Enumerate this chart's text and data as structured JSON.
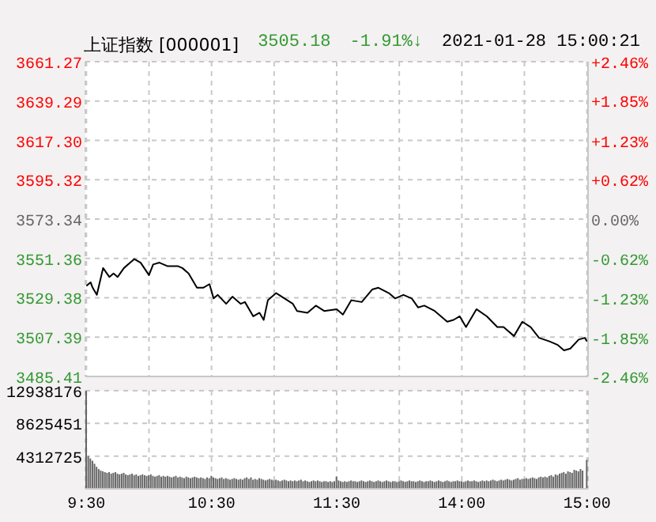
{
  "chart_data": [
    {
      "type": "line",
      "title": "上证指数 [000001]",
      "annotations": [
        "3505.18",
        "-1.91%↓",
        "2021-01-28 15:00:21"
      ],
      "grid": true,
      "tick_labels": "y",
      "marker": "none",
      "ylim": [
        3485.41,
        3661.27
      ],
      "yticks": [
        3485.41,
        3507.39,
        3529.38,
        3551.36,
        3573.34,
        3595.32,
        {
          "value": 3617.3,
          "label": "3617.30"
        },
        3639.29,
        3661.27
      ],
      "y2lim": [
        -2.46,
        2.46
      ],
      "y2ticks": [
        {
          "value": -2.46,
          "label": "-2.46%"
        },
        {
          "value": -1.85,
          "label": "-1.85%"
        },
        {
          "value": -1.23,
          "label": "-1.23%"
        },
        {
          "value": -0.62,
          "label": "-0.62%"
        },
        {
          "value": 0,
          "label": "0.00%"
        },
        {
          "value": 0.62,
          "label": "+0.62%"
        },
        {
          "value": 1.23,
          "label": "+1.23%"
        },
        {
          "value": 1.85,
          "label": "+1.85%"
        },
        {
          "value": 2.46,
          "label": "+2.46%"
        }
      ],
      "series": [
        {
          "color": "#000000",
          "values": [
            3536,
            null,
            3538,
            3535,
            null,
            3531,
            null,
            3541,
            3546,
            null,
            null,
            3541,
            null,
            3543,
            null,
            3541,
            null,
            null,
            3546,
            null,
            null,
            3549,
            null,
            3551,
            null,
            null,
            3549,
            null,
            null,
            null,
            3542,
            null,
            3548,
            null,
            null,
            3549,
            null,
            null,
            null,
            3547,
            null,
            null,
            null,
            null,
            3547,
            null,
            3546,
            null,
            null,
            3543,
            null,
            null,
            null,
            3535,
            null,
            null,
            3535,
            null,
            null,
            3537,
            null,
            3529,
            null,
            3531,
            null,
            null,
            null,
            3526,
            null,
            null,
            3530,
            null,
            null,
            null,
            3526,
            null,
            3527,
            null,
            null,
            null,
            3519,
            null,
            null,
            3521,
            null,
            3517,
            null,
            3528,
            null,
            null,
            null,
            3532,
            null,
            null,
            null,
            3529,
            null,
            null,
            null,
            3526,
            null,
            3522,
            null,
            null,
            null,
            null,
            3521,
            null,
            null,
            null,
            3525,
            null,
            null,
            null,
            3522,
            null,
            null,
            null,
            null,
            null,
            3523,
            null,
            null,
            3520,
            null,
            null,
            null,
            3528,
            null,
            null,
            null,
            null,
            3527,
            null,
            null,
            null,
            null,
            3534,
            null,
            null,
            3535,
            null,
            null,
            null,
            null,
            3532,
            null,
            null,
            3529,
            null,
            null,
            null,
            3531,
            null,
            null,
            null,
            3529,
            null,
            null,
            3524,
            null,
            null,
            3525,
            null,
            null,
            null,
            null,
            3522,
            null,
            null,
            null,
            null,
            null,
            3516,
            null,
            null,
            3517,
            null,
            null,
            3519,
            null,
            null,
            3513,
            null,
            null,
            null,
            null,
            3523,
            null,
            null,
            null,
            null,
            3519,
            null,
            null,
            null,
            null,
            3513,
            null,
            null,
            3513,
            null,
            null,
            null,
            null,
            3508,
            null,
            null,
            null,
            3516,
            null,
            null,
            null,
            3513,
            null,
            null,
            null,
            3507,
            null,
            null,
            null,
            null,
            3505,
            null,
            null,
            null,
            3503,
            null,
            null,
            3500,
            null,
            null,
            3501,
            null,
            null,
            null,
            3506,
            null,
            null,
            3507,
            3505
          ]
        }
      ]
    },
    {
      "type": "bar",
      "grid": true,
      "categories": [
        "9:30",
        null,
        null,
        null,
        null,
        null,
        null,
        null,
        null,
        null,
        null,
        null,
        null,
        null,
        null,
        null,
        null,
        null,
        null,
        null,
        null,
        null,
        null,
        null,
        null,
        null,
        null,
        null,
        null,
        null,
        null,
        null,
        null,
        null,
        null,
        null,
        null,
        null,
        null,
        null,
        null,
        null,
        null,
        null,
        null,
        null,
        null,
        null,
        null,
        null,
        null,
        null,
        null,
        null,
        null,
        null,
        null,
        null,
        null,
        null,
        "10:30",
        null,
        null,
        null,
        null,
        null,
        null,
        null,
        null,
        null,
        null,
        null,
        null,
        null,
        null,
        null,
        null,
        null,
        null,
        null,
        null,
        null,
        null,
        null,
        null,
        null,
        null,
        null,
        null,
        null,
        null,
        null,
        null,
        null,
        null,
        null,
        null,
        null,
        null,
        null,
        null,
        null,
        null,
        null,
        null,
        null,
        null,
        null,
        null,
        null,
        null,
        null,
        null,
        null,
        null,
        null,
        null,
        null,
        null,
        null,
        "11:30",
        null,
        null,
        null,
        null,
        null,
        null,
        null,
        null,
        null,
        null,
        null,
        null,
        null,
        null,
        null,
        null,
        null,
        null,
        null,
        null,
        null,
        null,
        null,
        null,
        null,
        null,
        null,
        null,
        null,
        null,
        null,
        null,
        null,
        null,
        null,
        null,
        null,
        null,
        null,
        null,
        null,
        null,
        null,
        null,
        null,
        null,
        null,
        null,
        null,
        null,
        null,
        null,
        null,
        null,
        null,
        null,
        null,
        null,
        null,
        "14:00",
        null,
        null,
        null,
        null,
        null,
        null,
        null,
        null,
        null,
        null,
        null,
        null,
        null,
        null,
        null,
        null,
        null,
        null,
        null,
        null,
        null,
        null,
        null,
        null,
        null,
        null,
        null,
        null,
        null,
        null,
        null,
        null,
        null,
        null,
        null,
        null,
        null,
        null,
        null,
        null,
        null,
        null,
        null,
        null,
        null,
        null,
        null,
        null,
        null,
        null,
        null,
        null,
        null,
        null,
        null,
        null,
        null,
        null,
        null,
        "15:00"
      ],
      "ylim": [
        0,
        12938176
      ],
      "yticks": [
        4312725,
        8625451,
        12938176
      ],
      "series": [
        {
          "color": "#666666",
          "values": [
            12900000,
            4300000,
            4000000,
            3700000,
            3300000,
            2900000,
            2600000,
            2400000,
            2300000,
            2200000,
            2100000,
            2200000,
            2000000,
            2100000,
            2200000,
            2000000,
            1900000,
            2000000,
            2100000,
            1900000,
            1800000,
            1900000,
            2000000,
            1800000,
            1900000,
            1700000,
            1800000,
            1900000,
            1800000,
            1700000,
            1800000,
            1900000,
            1700000,
            1600000,
            1700000,
            1800000,
            1600000,
            1700000,
            1600000,
            1700000,
            1600000,
            1500000,
            1600000,
            1700000,
            1500000,
            1600000,
            1500000,
            1400000,
            1600000,
            1500000,
            1400000,
            1500000,
            1600000,
            1500000,
            1400000,
            1500000,
            1400000,
            1300000,
            1500000,
            1400000,
            1700000,
            1500000,
            1400000,
            1300000,
            1400000,
            1500000,
            1300000,
            1400000,
            1300000,
            1200000,
            1300000,
            1400000,
            1300000,
            1200000,
            1300000,
            1200000,
            1400000,
            1500000,
            1300000,
            1500000,
            1200000,
            1300000,
            1200000,
            1400000,
            1300000,
            1200000,
            1100000,
            1200000,
            1300000,
            1200000,
            1100000,
            1200000,
            1100000,
            1000000,
            1100000,
            1200000,
            1100000,
            1000000,
            1100000,
            1000000,
            1100000,
            1000000,
            1100000,
            1200000,
            1000000,
            1100000,
            1000000,
            900000,
            1000000,
            1100000,
            1000000,
            1100000,
            1000000,
            900000,
            1000000,
            1000000,
            900000,
            1000000,
            900000,
            1000000,
            1600000,
            1100000,
            1000000,
            900000,
            1000000,
            900000,
            1000000,
            1100000,
            1000000,
            1000000,
            900000,
            1000000,
            1100000,
            1000000,
            900000,
            1000000,
            1100000,
            1000000,
            900000,
            1000000,
            1100000,
            1000000,
            900000,
            1000000,
            1100000,
            1000000,
            900000,
            1000000,
            1000000,
            900000,
            1000000,
            1100000,
            1000000,
            900000,
            1000000,
            1100000,
            1000000,
            1000000,
            900000,
            1000000,
            1100000,
            1000000,
            900000,
            1000000,
            1000000,
            1100000,
            1000000,
            900000,
            1000000,
            1100000,
            1000000,
            900000,
            1000000,
            1100000,
            1000000,
            900000,
            1000000,
            1000000,
            1100000,
            1000000,
            1000000,
            900000,
            1000000,
            1100000,
            1000000,
            1000000,
            1100000,
            1000000,
            900000,
            1000000,
            1100000,
            1000000,
            1100000,
            1000000,
            1100000,
            1200000,
            1100000,
            1000000,
            1100000,
            1200000,
            1100000,
            1200000,
            1300000,
            1200000,
            1100000,
            1200000,
            1300000,
            1400000,
            1200000,
            1300000,
            1300000,
            1400000,
            1300000,
            1400000,
            1500000,
            1400000,
            1300000,
            1500000,
            1600000,
            1500000,
            1600000,
            1500000,
            1700000,
            1800000,
            1600000,
            1900000,
            1800000,
            2000000,
            2100000,
            2200000,
            2000000,
            2300000,
            2200000,
            2100000,
            2500000,
            2400000,
            2300000,
            2600000,
            2400000,
            null,
            3800000
          ]
        }
      ]
    }
  ]
}
